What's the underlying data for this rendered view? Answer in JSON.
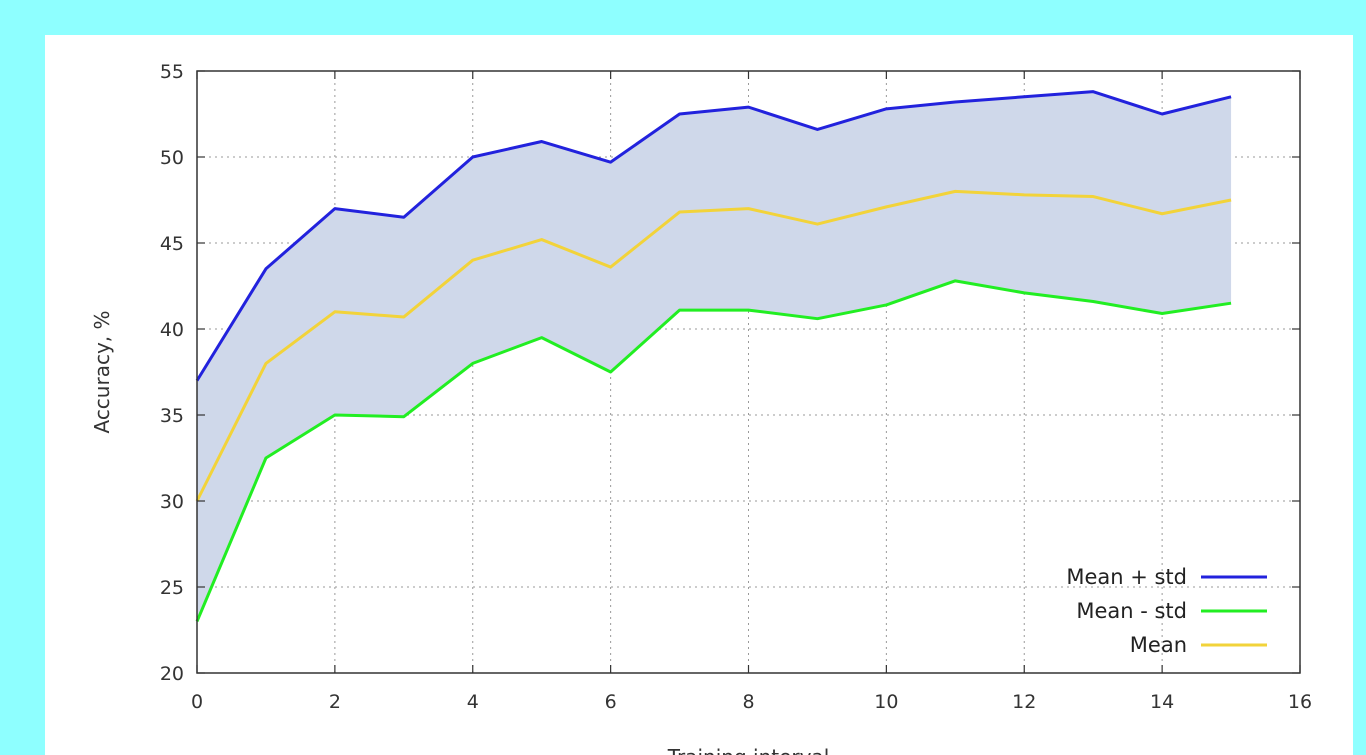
{
  "colors": {
    "page_bg": "#8effff",
    "panel_bg": "#ffffff",
    "band_fill": "#cfd8ea",
    "mean_plus_std": "#2222dd",
    "mean_minus_std": "#22ee22",
    "mean": "#f2d33a",
    "grid": "#9a9a9a",
    "axis": "#333333"
  },
  "chart_data": {
    "type": "line",
    "title": "",
    "xlabel": "Training interval",
    "ylabel": "Accuracy, %",
    "xlim": [
      0,
      16
    ],
    "ylim": [
      20,
      55
    ],
    "xticks": [
      0,
      2,
      4,
      6,
      8,
      10,
      12,
      14,
      16
    ],
    "yticks": [
      20,
      25,
      30,
      35,
      40,
      45,
      50,
      55
    ],
    "grid": true,
    "legend_position": "bottom-right",
    "shaded_band": {
      "between": [
        "Mean - std",
        "Mean + std"
      ]
    },
    "x": [
      0,
      1,
      2,
      3,
      4,
      5,
      6,
      7,
      8,
      9,
      10,
      11,
      12,
      13,
      14,
      15
    ],
    "series": [
      {
        "name": "Mean + std",
        "color": "#2222dd",
        "values": [
          37.0,
          43.5,
          47.0,
          46.5,
          50.0,
          50.9,
          49.7,
          52.5,
          52.9,
          51.6,
          52.8,
          53.2,
          53.5,
          53.8,
          52.5,
          53.5
        ]
      },
      {
        "name": "Mean - std",
        "color": "#22ee22",
        "values": [
          23.0,
          32.5,
          35.0,
          34.9,
          38.0,
          39.5,
          37.5,
          41.1,
          41.1,
          40.6,
          41.4,
          42.8,
          42.1,
          41.6,
          40.9,
          41.5
        ]
      },
      {
        "name": "Mean",
        "color": "#f2d33a",
        "values": [
          30.0,
          38.0,
          41.0,
          40.7,
          44.0,
          45.2,
          43.6,
          46.8,
          47.0,
          46.1,
          47.1,
          48.0,
          47.8,
          47.7,
          46.7,
          47.5
        ]
      }
    ]
  }
}
